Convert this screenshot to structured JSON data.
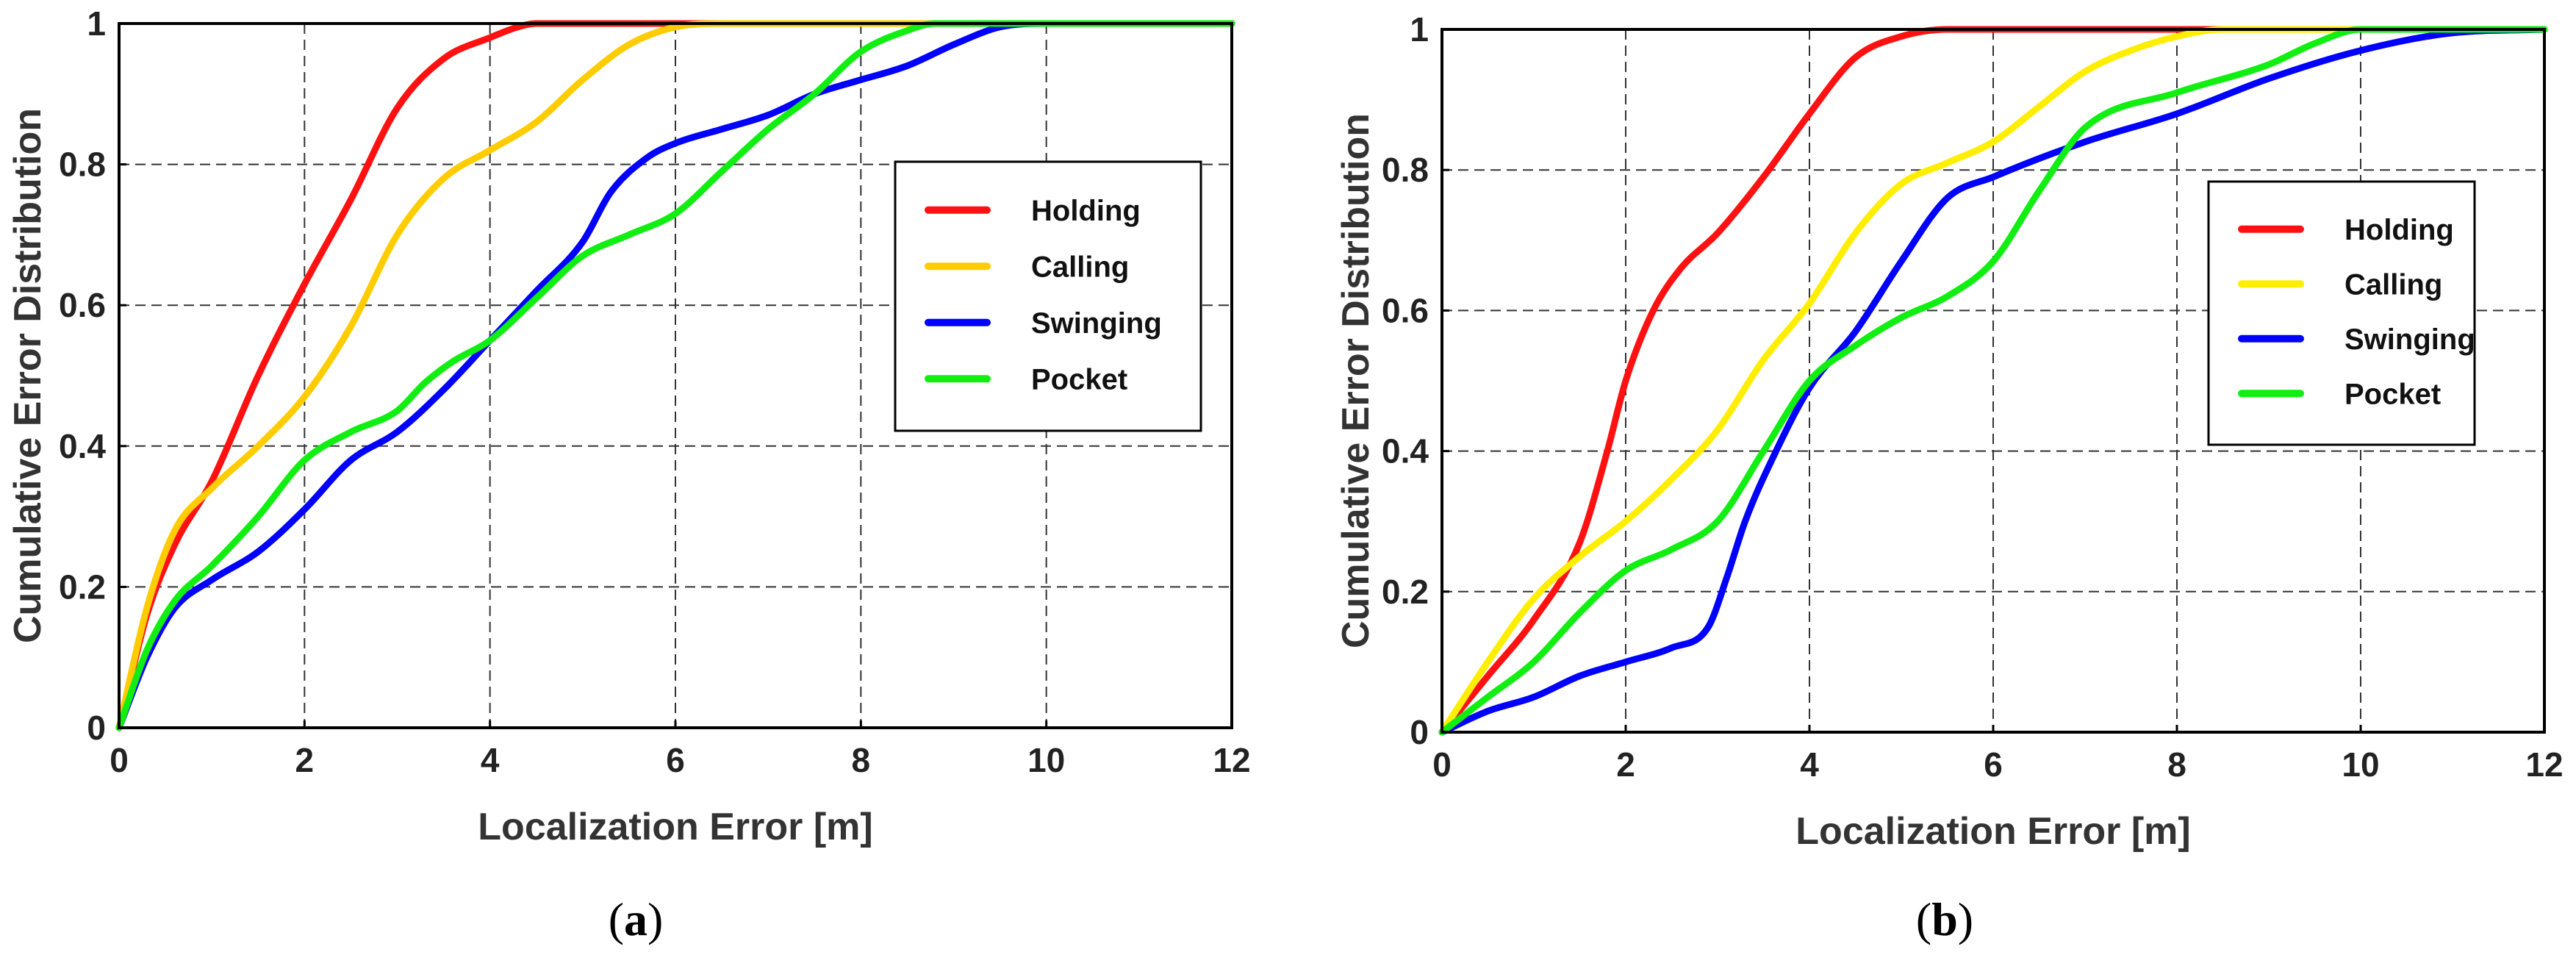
{
  "chart_data": [
    {
      "type": "line",
      "title": "",
      "xlabel": "Localization Error [m]",
      "ylabel": "Cumulative Error Distribution",
      "xlim": [
        0,
        12
      ],
      "ylim": [
        0,
        1
      ],
      "xticks": [
        "0",
        "2",
        "4",
        "6",
        "8",
        "10",
        "12"
      ],
      "yticks": [
        "0",
        "0.2",
        "0.4",
        "0.6",
        "0.8",
        "1"
      ],
      "grid": true,
      "legend_position": "right",
      "caption_label": "a",
      "series": [
        {
          "name": "Holding",
          "color": "#ff1111",
          "x": [
            0,
            0.3,
            0.6,
            1.0,
            1.5,
            2.0,
            2.5,
            3.0,
            3.5,
            4.0,
            4.3,
            4.5,
            5.0,
            12
          ],
          "y": [
            0,
            0.16,
            0.26,
            0.35,
            0.5,
            0.63,
            0.75,
            0.88,
            0.95,
            0.98,
            0.995,
            1,
            1,
            1
          ]
        },
        {
          "name": "Calling",
          "color": "#ffcc00",
          "x": [
            0,
            0.3,
            0.6,
            1.0,
            1.5,
            2.0,
            2.5,
            3.0,
            3.5,
            4.0,
            4.5,
            5.0,
            5.5,
            6.0,
            6.5,
            12
          ],
          "y": [
            0,
            0.17,
            0.28,
            0.34,
            0.4,
            0.47,
            0.57,
            0.7,
            0.78,
            0.82,
            0.86,
            0.92,
            0.97,
            0.995,
            1,
            1
          ]
        },
        {
          "name": "Swinging",
          "color": "#0000ff",
          "x": [
            0,
            0.3,
            0.6,
            1.0,
            1.5,
            2.0,
            2.5,
            3.0,
            3.5,
            4.0,
            4.5,
            5.0,
            5.3,
            5.7,
            6.0,
            6.5,
            7.0,
            7.5,
            8.0,
            8.5,
            9.0,
            9.5,
            10.0,
            12
          ],
          "y": [
            0,
            0.1,
            0.17,
            0.21,
            0.25,
            0.31,
            0.38,
            0.42,
            0.48,
            0.55,
            0.62,
            0.69,
            0.76,
            0.81,
            0.83,
            0.85,
            0.87,
            0.9,
            0.92,
            0.94,
            0.97,
            0.995,
            1,
            1
          ]
        },
        {
          "name": "Pocket",
          "color": "#11ee11",
          "x": [
            0,
            0.3,
            0.6,
            1.0,
            1.5,
            2.0,
            2.5,
            3.0,
            3.3,
            3.6,
            4.0,
            4.5,
            5.0,
            5.5,
            6.0,
            6.5,
            7.0,
            7.5,
            8.0,
            8.5,
            8.8,
            9.0,
            12
          ],
          "y": [
            0,
            0.11,
            0.18,
            0.23,
            0.3,
            0.38,
            0.42,
            0.45,
            0.49,
            0.52,
            0.55,
            0.61,
            0.67,
            0.7,
            0.73,
            0.79,
            0.85,
            0.9,
            0.96,
            0.99,
            1,
            1,
            1
          ]
        }
      ]
    },
    {
      "type": "line",
      "title": "",
      "xlabel": "Localization Error [m]",
      "ylabel": "Cumulative Error Distribution",
      "xlim": [
        0,
        12
      ],
      "ylim": [
        0,
        1
      ],
      "xticks": [
        "0",
        "2",
        "4",
        "6",
        "8",
        "10",
        "12"
      ],
      "yticks": [
        "0",
        "0.2",
        "0.4",
        "0.6",
        "0.8",
        "1"
      ],
      "grid": true,
      "legend_position": "right",
      "caption_label": "b",
      "series": [
        {
          "name": "Holding",
          "color": "#ff1111",
          "x": [
            0,
            0.5,
            1.0,
            1.5,
            1.8,
            2.0,
            2.3,
            2.6,
            3.0,
            3.5,
            4.0,
            4.5,
            5.0,
            5.5,
            6.0,
            12
          ],
          "y": [
            0,
            0.08,
            0.16,
            0.27,
            0.4,
            0.5,
            0.6,
            0.66,
            0.71,
            0.79,
            0.88,
            0.96,
            0.99,
            1,
            1,
            1
          ]
        },
        {
          "name": "Calling",
          "color": "#ffee00",
          "x": [
            0,
            0.5,
            1.0,
            1.5,
            2.0,
            2.5,
            3.0,
            3.5,
            4.0,
            4.5,
            5.0,
            5.5,
            6.0,
            6.5,
            7.0,
            7.5,
            8.0,
            8.5,
            12
          ],
          "y": [
            0,
            0.1,
            0.19,
            0.25,
            0.3,
            0.36,
            0.43,
            0.53,
            0.61,
            0.71,
            0.78,
            0.81,
            0.84,
            0.89,
            0.94,
            0.97,
            0.99,
            1,
            1
          ]
        },
        {
          "name": "Swinging",
          "color": "#0000ff",
          "x": [
            0,
            0.5,
            1.0,
            1.5,
            2.0,
            2.5,
            2.9,
            3.1,
            3.3,
            3.6,
            4.0,
            4.5,
            5.0,
            5.5,
            6.0,
            7.0,
            8.0,
            9.0,
            10.0,
            11.0,
            12
          ],
          "y": [
            0,
            0.03,
            0.05,
            0.08,
            0.1,
            0.12,
            0.15,
            0.22,
            0.3,
            0.39,
            0.49,
            0.57,
            0.67,
            0.76,
            0.79,
            0.84,
            0.88,
            0.93,
            0.97,
            0.995,
            1
          ]
        },
        {
          "name": "Pocket",
          "color": "#11ee11",
          "x": [
            0,
            0.5,
            1.0,
            1.5,
            2.0,
            2.5,
            3.0,
            3.5,
            4.0,
            4.5,
            5.0,
            5.5,
            6.0,
            6.5,
            7.0,
            8.0,
            9.0,
            9.5,
            10.0,
            12
          ],
          "y": [
            0,
            0.05,
            0.1,
            0.17,
            0.23,
            0.26,
            0.3,
            0.4,
            0.5,
            0.55,
            0.59,
            0.62,
            0.67,
            0.77,
            0.86,
            0.91,
            0.95,
            0.98,
            1,
            1
          ]
        }
      ]
    }
  ]
}
